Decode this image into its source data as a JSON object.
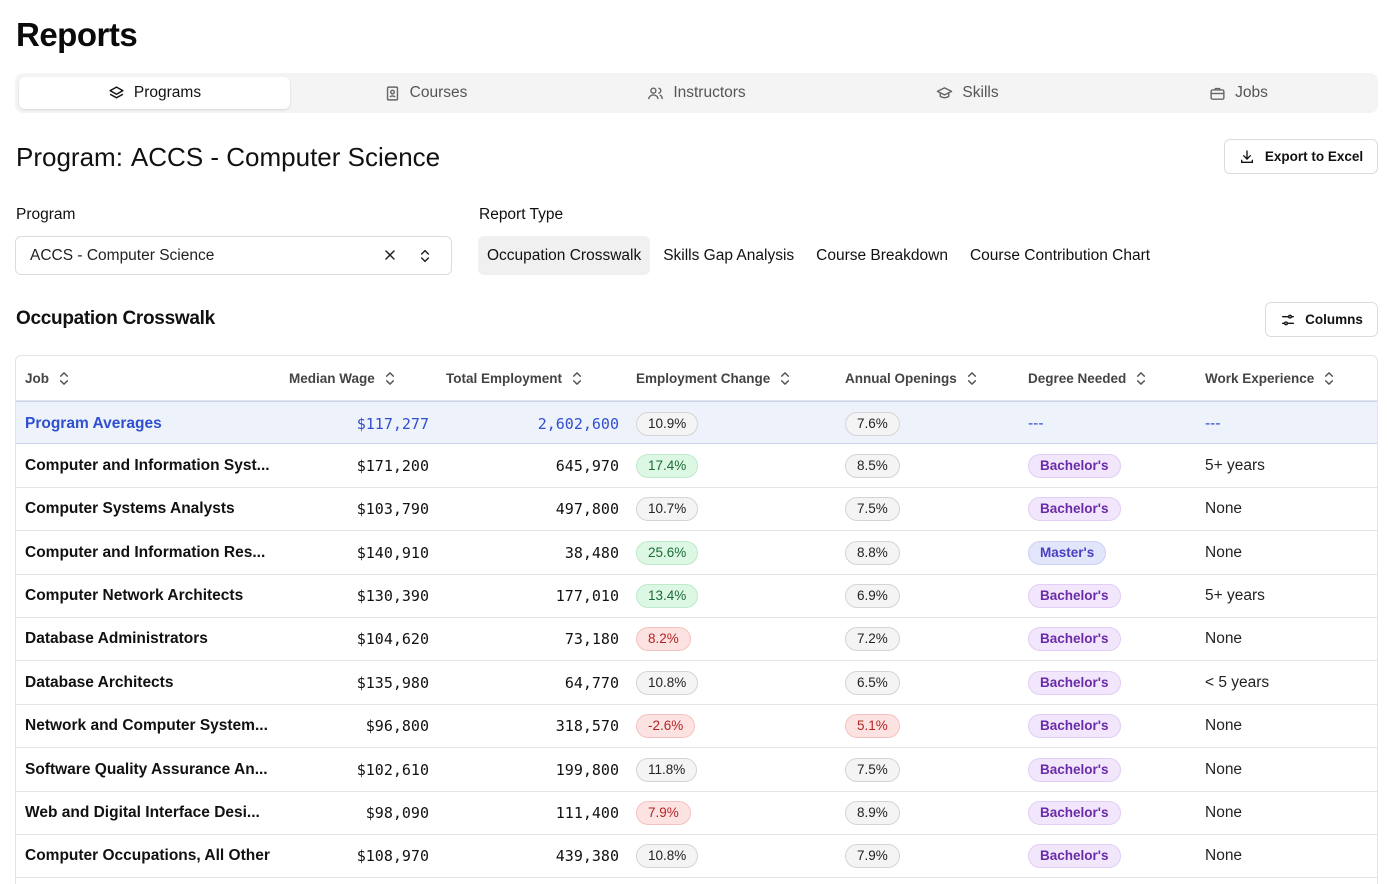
{
  "page": {
    "title": "Reports"
  },
  "tabs": [
    {
      "label": "Programs",
      "icon": "layers-icon",
      "active": true
    },
    {
      "label": "Courses",
      "icon": "book-icon",
      "active": false
    },
    {
      "label": "Instructors",
      "icon": "users-icon",
      "active": false
    },
    {
      "label": "Skills",
      "icon": "graduation-cap-icon",
      "active": false
    },
    {
      "label": "Jobs",
      "icon": "briefcase-icon",
      "active": false
    }
  ],
  "program": {
    "heading_label": "Program:",
    "heading_value": "ACCS - Computer Science",
    "export_label": "Export to Excel",
    "field_label": "Program",
    "selected": "ACCS - Computer Science"
  },
  "report_type": {
    "label": "Report Type",
    "options": [
      "Occupation Crosswalk",
      "Skills Gap Analysis",
      "Course Breakdown",
      "Course Contribution Chart"
    ],
    "selected": "Occupation Crosswalk"
  },
  "section": {
    "title": "Occupation Crosswalk",
    "columns_label": "Columns"
  },
  "table": {
    "headers": [
      "Job",
      "Median Wage",
      "Total Employment",
      "Employment Change",
      "Annual Openings",
      "Degree Needed",
      "Work Experience"
    ],
    "averages": {
      "job": "Program Averages",
      "wage": "$117,277",
      "employment": "2,602,600",
      "change": "10.9%",
      "openings": "7.6%",
      "degree": "---",
      "experience": "---"
    },
    "rows": [
      {
        "job": "Computer and Information Syst...",
        "wage": "$171,200",
        "employment": "645,970",
        "change": "17.4%",
        "change_tone": "green",
        "openings": "8.5%",
        "openings_tone": "neutral",
        "degree": "Bachelor's",
        "degree_tone": "bach",
        "experience": "5+ years"
      },
      {
        "job": "Computer Systems Analysts",
        "wage": "$103,790",
        "employment": "497,800",
        "change": "10.7%",
        "change_tone": "neutral",
        "openings": "7.5%",
        "openings_tone": "neutral",
        "degree": "Bachelor's",
        "degree_tone": "bach",
        "experience": "None"
      },
      {
        "job": "Computer and Information Res...",
        "wage": "$140,910",
        "employment": "38,480",
        "change": "25.6%",
        "change_tone": "green",
        "openings": "8.8%",
        "openings_tone": "neutral",
        "degree": "Master's",
        "degree_tone": "mast",
        "experience": "None"
      },
      {
        "job": "Computer Network Architects",
        "wage": "$130,390",
        "employment": "177,010",
        "change": "13.4%",
        "change_tone": "green",
        "openings": "6.9%",
        "openings_tone": "neutral",
        "degree": "Bachelor's",
        "degree_tone": "bach",
        "experience": "5+ years"
      },
      {
        "job": "Database Administrators",
        "wage": "$104,620",
        "employment": "73,180",
        "change": "8.2%",
        "change_tone": "red",
        "openings": "7.2%",
        "openings_tone": "neutral",
        "degree": "Bachelor's",
        "degree_tone": "bach",
        "experience": "None"
      },
      {
        "job": "Database Architects",
        "wage": "$135,980",
        "employment": "64,770",
        "change": "10.8%",
        "change_tone": "neutral",
        "openings": "6.5%",
        "openings_tone": "neutral",
        "degree": "Bachelor's",
        "degree_tone": "bach",
        "experience": "< 5 years"
      },
      {
        "job": "Network and Computer System...",
        "wage": "$96,800",
        "employment": "318,570",
        "change": "-2.6%",
        "change_tone": "red",
        "openings": "5.1%",
        "openings_tone": "red",
        "degree": "Bachelor's",
        "degree_tone": "bach",
        "experience": "None"
      },
      {
        "job": "Software Quality Assurance An...",
        "wage": "$102,610",
        "employment": "199,800",
        "change": "11.8%",
        "change_tone": "neutral",
        "openings": "7.5%",
        "openings_tone": "neutral",
        "degree": "Bachelor's",
        "degree_tone": "bach",
        "experience": "None"
      },
      {
        "job": "Web and Digital Interface Desi...",
        "wage": "$98,090",
        "employment": "111,400",
        "change": "7.9%",
        "change_tone": "red",
        "openings": "8.9%",
        "openings_tone": "neutral",
        "degree": "Bachelor's",
        "degree_tone": "bach",
        "experience": "None"
      },
      {
        "job": "Computer Occupations, All Other",
        "wage": "$108,970",
        "employment": "439,380",
        "change": "10.8%",
        "change_tone": "neutral",
        "openings": "7.9%",
        "openings_tone": "neutral",
        "degree": "Bachelor's",
        "degree_tone": "bach",
        "experience": "None"
      }
    ]
  },
  "colors": {
    "accent_blue": "#2f4fcf",
    "avg_row_bg": "#eef2fb"
  }
}
